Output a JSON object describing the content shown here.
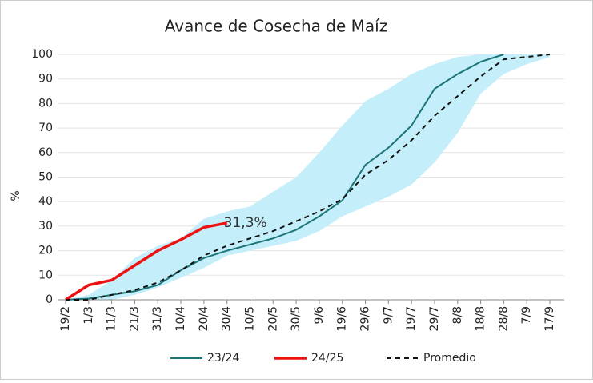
{
  "chart_data": {
    "type": "line",
    "title": "Avance de Cosecha de Maíz",
    "y_label": "%",
    "categories": [
      "19/2",
      "1/3",
      "11/3",
      "21/3",
      "31/3",
      "10/4",
      "20/4",
      "30/4",
      "10/5",
      "20/5",
      "30/5",
      "9/6",
      "19/6",
      "29/6",
      "9/7",
      "19/7",
      "29/7",
      "8/8",
      "18/8",
      "28/8",
      "7/9",
      "17/9"
    ],
    "band": {
      "color": "#c4eefa",
      "lower": [
        0,
        0,
        0,
        2,
        5,
        9,
        13,
        18,
        20,
        22,
        24,
        28,
        34,
        38,
        42,
        47,
        56,
        68,
        84,
        92,
        96,
        99
      ],
      "upper": [
        0,
        2,
        8,
        17,
        22,
        25,
        33,
        36,
        38,
        44,
        50,
        60,
        71,
        81,
        86,
        92,
        96,
        99,
        100,
        100,
        100,
        100
      ]
    },
    "series": [
      {
        "name": "23/24",
        "color": "#1b7577",
        "dash": false,
        "width": 2,
        "values": [
          0,
          0.5,
          2,
          3.5,
          6,
          12,
          17,
          20,
          22.5,
          25,
          28.5,
          34,
          40.5,
          55,
          62,
          71,
          86,
          92,
          97,
          100,
          null,
          null
        ]
      },
      {
        "name": "24/25",
        "color": "#ee1111",
        "dash": false,
        "width": 3.5,
        "values": [
          0,
          6,
          8,
          14,
          20,
          24.5,
          29.5,
          31.3,
          null,
          null,
          null,
          null,
          null,
          null,
          null,
          null,
          null,
          null,
          null,
          null,
          null,
          null
        ],
        "value_labels": [
          null,
          null,
          null,
          null,
          null,
          null,
          null,
          "31,3%",
          null,
          null,
          null,
          null,
          null,
          null,
          null,
          null,
          null,
          null,
          null,
          null,
          null,
          null
        ]
      },
      {
        "name": "Promedio",
        "color": "#111111",
        "dash": true,
        "width": 2,
        "values": [
          0,
          0,
          2,
          4,
          7,
          12,
          18,
          22,
          25,
          28,
          32,
          36,
          41,
          51,
          57,
          65,
          75,
          83,
          91,
          98,
          99,
          100
        ]
      }
    ],
    "ylim": [
      0,
      100
    ],
    "yticks": [
      0,
      10,
      20,
      30,
      40,
      50,
      60,
      70,
      80,
      90,
      100
    ],
    "grid": true,
    "legend": "bottom"
  }
}
